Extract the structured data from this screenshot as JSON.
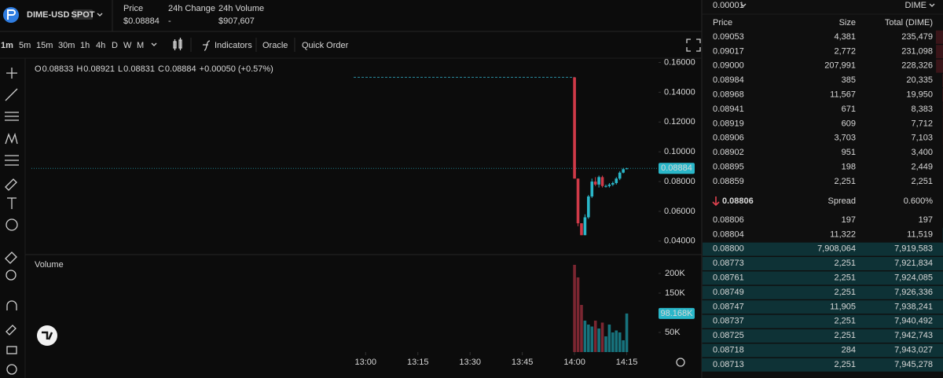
{
  "header": {
    "symbol": "DIME-USD",
    "market_type": "SPOT",
    "stats": [
      {
        "label": "Price",
        "value": "$0.08884"
      },
      {
        "label": "24h Change",
        "value": "-"
      },
      {
        "label": "24h Volume",
        "value": "$907,607"
      }
    ]
  },
  "toolbar": {
    "intervals": [
      "1m",
      "5m",
      "15m",
      "30m",
      "1h",
      "4h",
      "D",
      "W",
      "M"
    ],
    "items": [
      "Indicators",
      "Oracle",
      "Quick Order"
    ]
  },
  "ohlc": {
    "o_label": "O",
    "o": "0.08833",
    "h_label": "H",
    "h": "0.08921",
    "l_label": "L",
    "l": "0.08831",
    "c_label": "C",
    "c": "0.08884",
    "change": "+0.00050 (+0.57%)"
  },
  "chart": {
    "type": "candlestick",
    "x": [
      "14:00",
      "14:01",
      "14:02",
      "14:03",
      "14:04",
      "14:05",
      "14:06",
      "14:07",
      "14:08",
      "14:09",
      "14:10",
      "14:11",
      "14:12",
      "14:13",
      "14:14",
      "14:15"
    ],
    "open": [
      0.15,
      0.082,
      0.052,
      0.044,
      0.056,
      0.07,
      0.08,
      0.078,
      0.083,
      0.077,
      0.077,
      0.078,
      0.079,
      0.082,
      0.086,
      0.08833
    ],
    "high": [
      0.15,
      0.082,
      0.052,
      0.058,
      0.071,
      0.082,
      0.083,
      0.084,
      0.084,
      0.078,
      0.079,
      0.08,
      0.083,
      0.087,
      0.0892,
      0.08921
    ],
    "low": [
      0.082,
      0.05,
      0.044,
      0.044,
      0.055,
      0.069,
      0.077,
      0.076,
      0.076,
      0.076,
      0.076,
      0.077,
      0.078,
      0.081,
      0.0855,
      0.08831
    ],
    "close": [
      0.082,
      0.052,
      0.044,
      0.056,
      0.07,
      0.08,
      0.078,
      0.083,
      0.077,
      0.077,
      0.078,
      0.079,
      0.082,
      0.086,
      0.0883,
      0.08884
    ],
    "volume": [
      222000,
      190000,
      120000,
      80000,
      70000,
      65000,
      80000,
      60000,
      75000,
      40000,
      70000,
      50000,
      55000,
      50000,
      30000,
      98168
    ],
    "up_color": "#2ab7c9",
    "down_color": "#d03a48",
    "volume_up_color": "#17727c",
    "volume_down_color": "#7b2631",
    "xlim": [
      "11:24",
      "14:23"
    ],
    "xticks": [
      "13:00",
      "13:15",
      "13:30",
      "13:45",
      "14:00",
      "14:15"
    ],
    "ylim": [
      0.032,
      0.165
    ],
    "yticks": [
      {
        "value": 0.04,
        "label": "0.04000"
      },
      {
        "value": 0.06,
        "label": "0.06000"
      },
      {
        "value": 0.08,
        "label": "0.08000"
      },
      {
        "value": 0.1,
        "label": "0.10000"
      },
      {
        "value": 0.12,
        "label": "0.12000"
      },
      {
        "value": 0.14,
        "label": "0.14000"
      },
      {
        "value": 0.16,
        "label": "0.16000"
      }
    ],
    "marker_line": 0.15,
    "last_price": {
      "value": 0.08884,
      "label": "0.08884"
    },
    "volume_label": "Volume",
    "volume_ylim": [
      0,
      236000
    ],
    "volume_yticks": [
      {
        "value": 50000,
        "label": "50K"
      },
      {
        "value": 150000,
        "label": "150K"
      },
      {
        "value": 200000,
        "label": "200K"
      }
    ],
    "last_volume": {
      "value": 98168,
      "label": "98.168K"
    }
  },
  "order_book": {
    "tick_size": "0.00001",
    "unit": "DIME",
    "columns": [
      "Price",
      "Size",
      "Total (DIME)"
    ],
    "asks": [
      [
        "0.09053",
        "4,381",
        "235,479"
      ],
      [
        "0.09017",
        "2,772",
        "231,098"
      ],
      [
        "0.09000",
        "207,991",
        "228,326"
      ],
      [
        "0.08984",
        "385",
        "20,335"
      ],
      [
        "0.08968",
        "11,567",
        "19,950"
      ],
      [
        "0.08941",
        "671",
        "8,383"
      ],
      [
        "0.08919",
        "609",
        "7,712"
      ],
      [
        "0.08906",
        "3,703",
        "7,103"
      ],
      [
        "0.08902",
        "951",
        "3,400"
      ],
      [
        "0.08895",
        "198",
        "2,449"
      ],
      [
        "0.08859",
        "2,251",
        "2,251"
      ]
    ],
    "spread": {
      "price": "0.08806",
      "label": "Spread",
      "value": "0.600%"
    },
    "bids": [
      [
        "0.08806",
        "197",
        "197"
      ],
      [
        "0.08804",
        "11,322",
        "11,519"
      ],
      [
        "0.08800",
        "7,908,064",
        "7,919,583"
      ],
      [
        "0.08773",
        "2,251",
        "7,921,834"
      ],
      [
        "0.08761",
        "2,251",
        "7,924,085"
      ],
      [
        "0.08749",
        "2,251",
        "7,926,336"
      ],
      [
        "0.08747",
        "11,905",
        "7,938,241"
      ],
      [
        "0.08737",
        "2,251",
        "7,940,492"
      ],
      [
        "0.08725",
        "2,251",
        "7,942,743"
      ],
      [
        "0.08718",
        "284",
        "7,943,027"
      ],
      [
        "0.08713",
        "2,251",
        "7,945,278"
      ]
    ]
  }
}
